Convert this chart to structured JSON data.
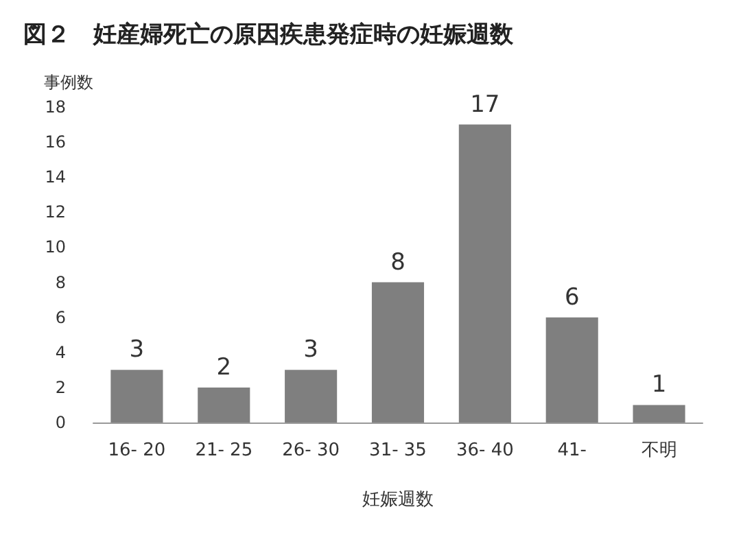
{
  "chart_data": {
    "type": "bar",
    "title": "図２　妊産婦死亡の原因疾患発症時の妊娠週数",
    "ylabel": "事例数",
    "xlabel": "妊娠週数",
    "categories": [
      "16- 20",
      "21- 25",
      "26- 30",
      "31- 35",
      "36- 40",
      "41-",
      "不明"
    ],
    "values": [
      3,
      2,
      3,
      8,
      17,
      6,
      1
    ],
    "color": "#7f7f7f",
    "ylim": [
      0,
      18
    ],
    "yticks": [
      0,
      2,
      4,
      6,
      8,
      10,
      12,
      14,
      16,
      18
    ],
    "grid": false,
    "data_labels": true
  }
}
